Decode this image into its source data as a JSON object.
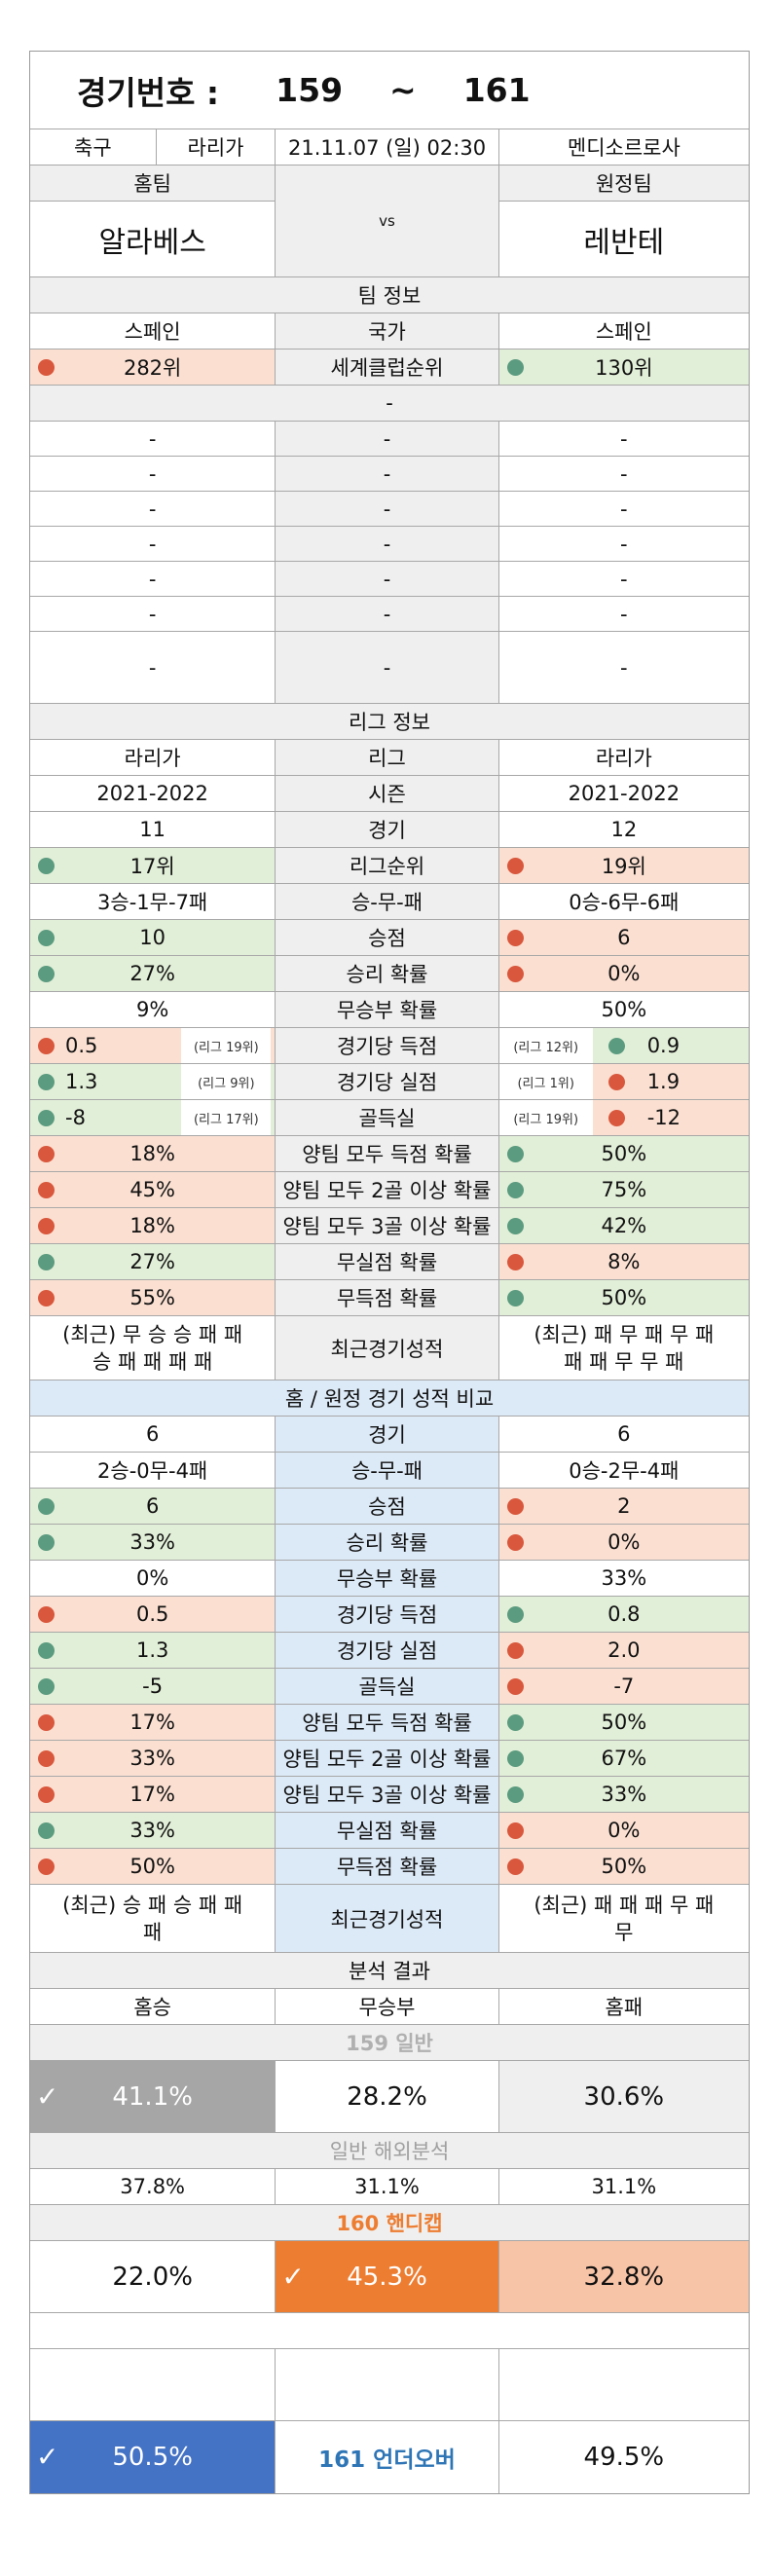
{
  "header": {
    "label": "경기번호 :",
    "from": "159",
    "tilde": "~",
    "to": "161"
  },
  "match": {
    "sport": "축구",
    "league": "라리가",
    "datetime": "21.11.07 (일) 02:30",
    "stadium": "멘디소르로사"
  },
  "teams": {
    "home_label": "홈팀",
    "away_label": "원정팀",
    "home": "알라베스",
    "vs": "vs",
    "away": "레반테"
  },
  "team_info": {
    "title": "팀 정보",
    "country": {
      "home": "스페인",
      "label": "국가",
      "away": "스페인"
    },
    "rank": {
      "home": "282위",
      "label": "세계클럽순위",
      "away": "130위"
    },
    "divider": "-",
    "blank_rows": [
      [
        "-",
        "-",
        "-"
      ],
      [
        "-",
        "-",
        "-"
      ],
      [
        "-",
        "-",
        "-"
      ],
      [
        "-",
        "-",
        "-"
      ],
      [
        "-",
        "-",
        "-"
      ],
      [
        "-",
        "-",
        "-"
      ],
      [
        "-",
        "-",
        "-"
      ]
    ]
  },
  "league_info": {
    "title": "리그 정보",
    "league": {
      "home": "라리가",
      "label": "리그",
      "away": "라리가"
    },
    "season": {
      "home": "2021-2022",
      "label": "시즌",
      "away": "2021-2022"
    },
    "games": {
      "home": "11",
      "label": "경기",
      "away": "12"
    },
    "rank": {
      "home": "17위",
      "label": "리그순위",
      "away": "19위"
    },
    "record": {
      "home": "3승-1무-7패",
      "label": "승-무-패",
      "away": "0승-6무-6패"
    },
    "points": {
      "home": "10",
      "label": "승점",
      "away": "6"
    },
    "win_rate": {
      "home": "27%",
      "label": "승리 확률",
      "away": "0%"
    },
    "draw_rate": {
      "home": "9%",
      "label": "무승부 확률",
      "away": "50%"
    },
    "goals_for": {
      "home": "0.5",
      "home_note": "(리그 19위)",
      "label": "경기당 득점",
      "away_note": "(리그 12위)",
      "away": "0.9"
    },
    "goals_against": {
      "home": "1.3",
      "home_note": "(리그 9위)",
      "label": "경기당 실점",
      "away_note": "(리그 1위)",
      "away": "1.9"
    },
    "goal_diff": {
      "home": "-8",
      "home_note": "(리그 17위)",
      "label": "골득실",
      "away_note": "(리그 19위)",
      "away": "-12"
    },
    "btts": {
      "home": "18%",
      "label": "양팀 모두 득점 확률",
      "away": "50%"
    },
    "btts2": {
      "home": "45%",
      "label": "양팀 모두 2골 이상 확률",
      "away": "75%"
    },
    "btts3": {
      "home": "18%",
      "label": "양팀 모두 3골 이상 확률",
      "away": "42%"
    },
    "clean_sheet": {
      "home": "27%",
      "label": "무실점 확률",
      "away": "8%"
    },
    "no_score": {
      "home": "55%",
      "label": "무득점 확률",
      "away": "50%"
    },
    "recent": {
      "home_l1": "(최근) 무 승 승 패 패",
      "home_l2": "승 패 패 패 패",
      "label": "최근경기성적",
      "away_l1": "(최근) 패 무 패 무 패",
      "away_l2": "패 패 무 무 패"
    }
  },
  "homeaway": {
    "title": "홈 / 원정 경기 성적 비교",
    "games": {
      "home": "6",
      "label": "경기",
      "away": "6"
    },
    "record": {
      "home": "2승-0무-4패",
      "label": "승-무-패",
      "away": "0승-2무-4패"
    },
    "points": {
      "home": "6",
      "label": "승점",
      "away": "2"
    },
    "win_rate": {
      "home": "33%",
      "label": "승리 확률",
      "away": "0%"
    },
    "draw_rate": {
      "home": "0%",
      "label": "무승부 확률",
      "away": "33%"
    },
    "goals_for": {
      "home": "0.5",
      "label": "경기당 득점",
      "away": "0.8"
    },
    "goals_against": {
      "home": "1.3",
      "label": "경기당 실점",
      "away": "2.0"
    },
    "goal_diff": {
      "home": "-5",
      "label": "골득실",
      "away": "-7"
    },
    "btts": {
      "home": "17%",
      "label": "양팀 모두 득점 확률",
      "away": "50%"
    },
    "btts2": {
      "home": "33%",
      "label": "양팀 모두 2골 이상 확률",
      "away": "67%"
    },
    "btts3": {
      "home": "17%",
      "label": "양팀 모두 3골 이상 확률",
      "away": "33%"
    },
    "clean_sheet": {
      "home": "33%",
      "label": "무실점 확률",
      "away": "0%"
    },
    "no_score": {
      "home": "50%",
      "label": "무득점 확률",
      "away": "50%"
    },
    "recent": {
      "home_l1": "(최근) 승 패 승 패 패",
      "home_l2": "패",
      "label": "최근경기성적",
      "away_l1": "(최근) 패 패 패 무 패",
      "away_l2": "무"
    }
  },
  "analysis": {
    "title": "분석 결과",
    "cols": {
      "home": "홈승",
      "draw": "무승부",
      "away": "홈패"
    },
    "general_title": "159 일반",
    "general": {
      "home": "41.1%",
      "draw": "28.2%",
      "away": "30.6%"
    },
    "overseas_title": "일반 해외분석",
    "overseas": {
      "home": "37.8%",
      "draw": "31.1%",
      "away": "31.1%"
    },
    "handicap_title": "160 핸디캡",
    "handicap": {
      "home": "22.0%",
      "draw": "45.3%",
      "away": "32.8%"
    },
    "underover": {
      "under": "50.5%",
      "label": "161 언더오버",
      "over": "49.5%"
    }
  },
  "colors": {
    "red_dot": "#d9573c",
    "green_dot": "#5b9b7f",
    "orange": "#ed7d31",
    "blue": "#4472c4"
  }
}
